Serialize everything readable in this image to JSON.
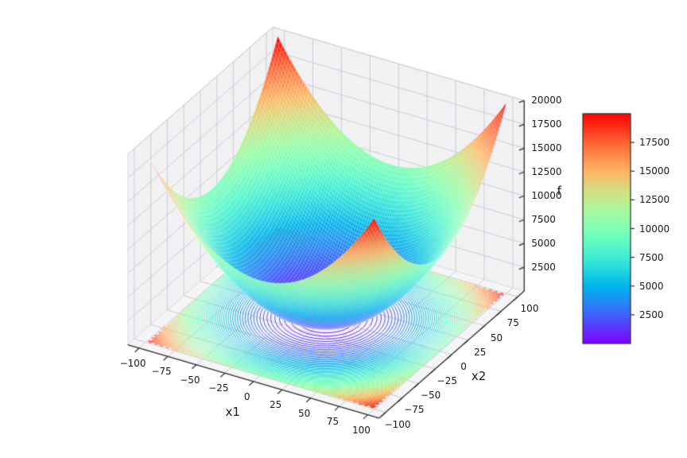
{
  "figure": {
    "background": "#ffffff"
  },
  "axes3d": {
    "xlabel": "x1",
    "ylabel": "x2",
    "zlabel": "f",
    "pane_color": "#f1f1f4",
    "floor_color": "#f5f5f8",
    "grid_color": "#cbcbd2",
    "pane_edge_color": "#dedee3",
    "axis_line_color": "#2e2e2e",
    "tick_text_color": "#1a1a1a"
  },
  "chart_data": {
    "type": "surface",
    "title": "",
    "function": "f(x1,x2) = x1^2 + x2^2",
    "xlabel": "x1",
    "ylabel": "x2",
    "zlabel": "f",
    "x": {
      "min": -100,
      "max": 100,
      "ticks": [
        -100,
        -75,
        -50,
        -25,
        0,
        25,
        50,
        75,
        100
      ]
    },
    "y": {
      "min": -100,
      "max": 100,
      "ticks": [
        -100,
        -75,
        -50,
        -25,
        0,
        25,
        50,
        75,
        100
      ]
    },
    "z": {
      "min": 0,
      "max": 20000,
      "ticks": [
        2500,
        5000,
        7500,
        10000,
        12500,
        15000,
        17500,
        20000
      ]
    },
    "axis_limits": {
      "x": [
        -110,
        110
      ],
      "y": [
        -110,
        110
      ],
      "z": [
        0,
        20000
      ]
    },
    "view": {
      "elev": 30,
      "azim": -60,
      "projection": "orthographic"
    },
    "colormap": "rainbow",
    "surface_grid_n": 100,
    "contour_projection": {
      "plane": "z=0",
      "level_min": 250,
      "level_step": 250,
      "level_max": 20000
    },
    "colorbar": {
      "vmin": 0,
      "vmax": 20000,
      "ticks": [
        2500,
        5000,
        7500,
        10000,
        12500,
        15000,
        17500
      ]
    },
    "grid": true
  }
}
